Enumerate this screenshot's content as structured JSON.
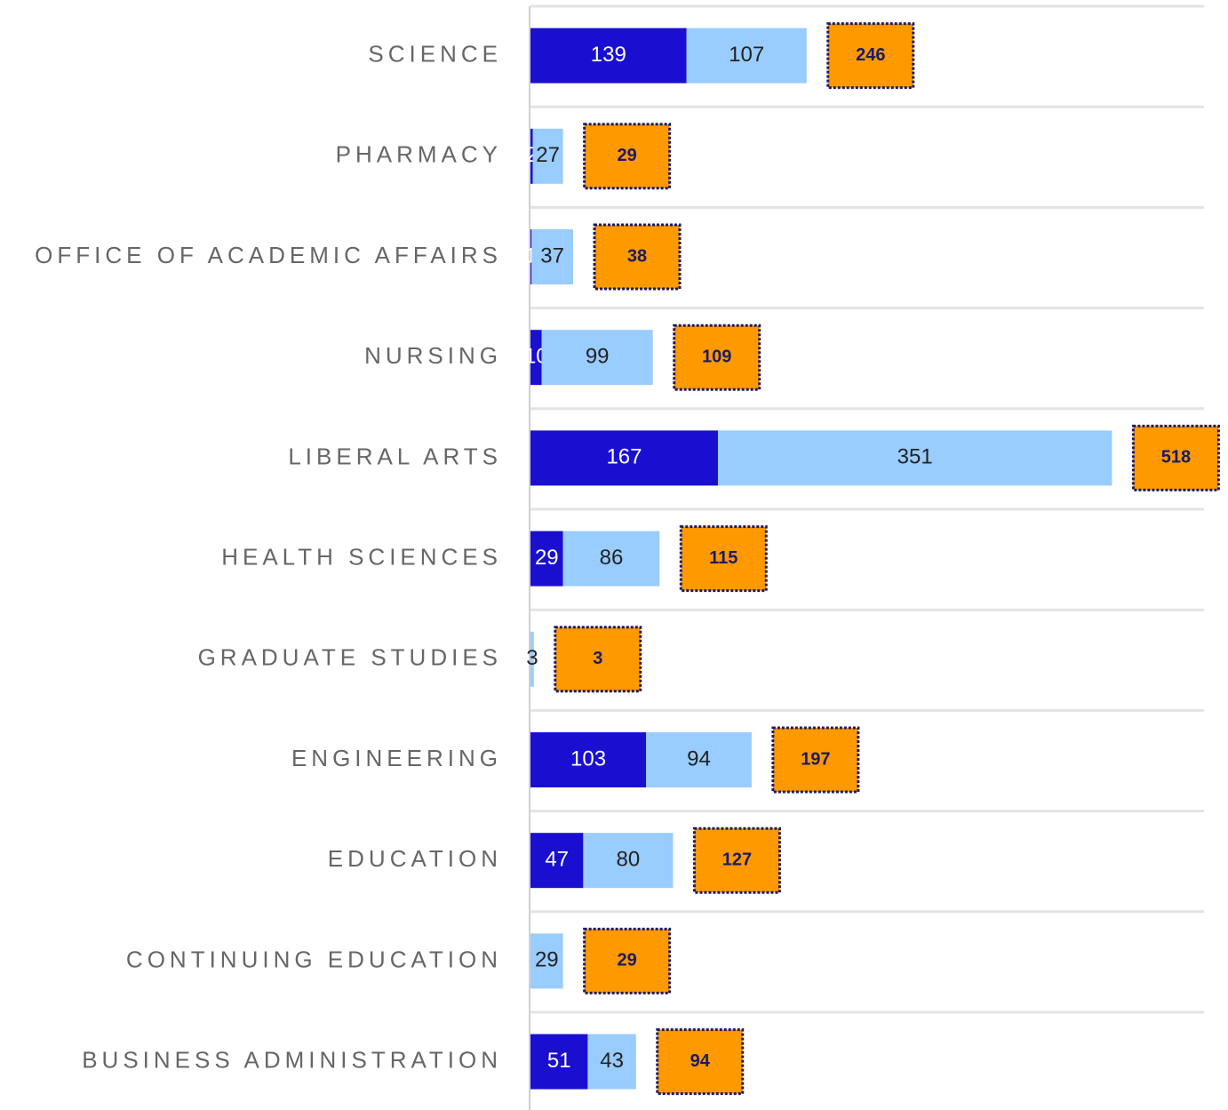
{
  "chart_data": {
    "type": "stacked-bar-horizontal",
    "categories": [
      "SCIENCE",
      "PHARMACY",
      "OFFICE OF ACADEMIC AFFAIRS",
      "NURSING",
      "LIBERAL ARTS",
      "HEALTH SCIENCES",
      "GRADUATE STUDIES",
      "ENGINEERING",
      "EDUCATION",
      "CONTINUING EDUCATION",
      "BUSINESS ADMINISTRATION"
    ],
    "series": [
      {
        "color": "#1a0fd0",
        "label_color": "#ffffff",
        "values": [
          139,
          2,
          1,
          10,
          167,
          29,
          0,
          103,
          47,
          0,
          51
        ]
      },
      {
        "color": "#99ccff",
        "label_color": "#222222",
        "values": [
          107,
          27,
          37,
          99,
          351,
          86,
          3,
          94,
          80,
          29,
          43
        ]
      }
    ],
    "totals": [
      246,
      29,
      38,
      109,
      518,
      115,
      3,
      197,
      127,
      29,
      94
    ],
    "total_color": "#ff9900",
    "xlim": [
      0,
      600
    ],
    "grid": true
  }
}
